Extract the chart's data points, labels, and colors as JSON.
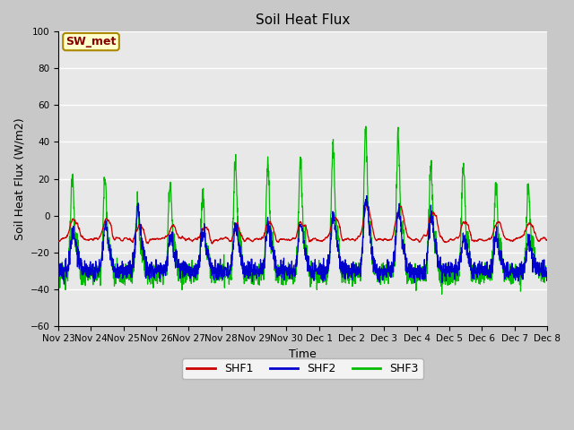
{
  "title": "Soil Heat Flux",
  "ylabel": "Soil Heat Flux (W/m2)",
  "xlabel": "Time",
  "ylim": [
    -60,
    100
  ],
  "plot_bg_color": "#e8e8e8",
  "fig_bg_color": "#c8c8c8",
  "grid_color": "white",
  "series": {
    "SHF1": {
      "color": "#cc0000",
      "lw": 0.9
    },
    "SHF2": {
      "color": "#0000cc",
      "lw": 0.9
    },
    "SHF3": {
      "color": "#00bb00",
      "lw": 0.9
    }
  },
  "x_tick_labels": [
    "Nov 23",
    "Nov 24",
    "Nov 25",
    "Nov 26",
    "Nov 27",
    "Nov 28",
    "Nov 29",
    "Nov 30",
    "Dec 1",
    "Dec 2",
    "Dec 3",
    "Dec 4",
    "Dec 5",
    "Dec 6",
    "Dec 7",
    "Dec 8"
  ],
  "annotation_text": "SW_met",
  "annotation_fontsize": 9,
  "legend_labels": [
    "SHF1",
    "SHF2",
    "SHF3"
  ],
  "legend_colors": [
    "#cc0000",
    "#0000cc",
    "#00bb00"
  ],
  "num_points": 2160,
  "title_fontsize": 11,
  "axis_fontsize": 9,
  "tick_fontsize": 7.5,
  "yticks": [
    -60,
    -40,
    -20,
    0,
    20,
    40,
    60,
    80,
    100
  ]
}
